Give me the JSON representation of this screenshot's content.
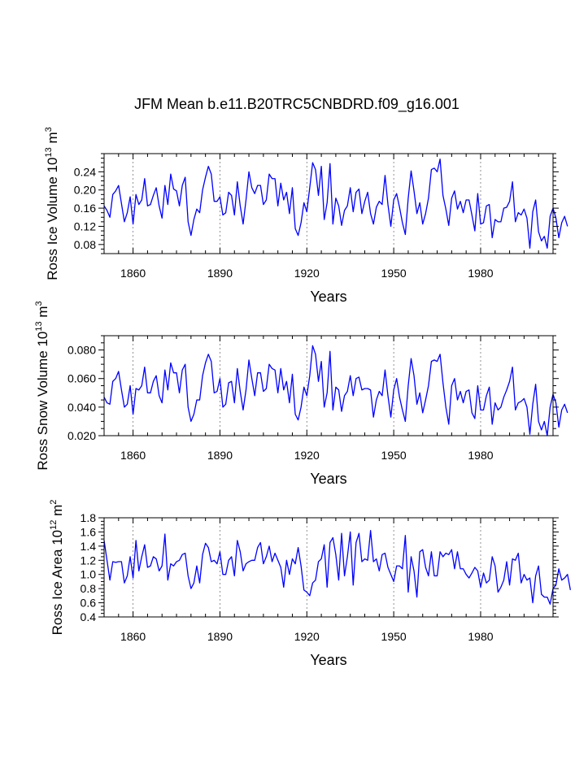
{
  "chart_data": [
    {
      "type": "line",
      "title": "JFM Mean b.e11.B20TRC5CNBDRD.f09_g16.001",
      "ylabel": {
        "base": "Ross Ice Volume 10",
        "exp": "13",
        "unit_base": "m",
        "unit_exp": "3"
      },
      "xlabel": "Years",
      "xlim": [
        1850,
        2005
      ],
      "ylim": [
        0.06,
        0.28
      ],
      "xticks": [
        1860,
        1890,
        1920,
        1950,
        1980
      ],
      "xtick_labels": [
        "1860",
        "1890",
        "1920",
        "1950",
        "1980"
      ],
      "yticks": [
        0.08,
        0.12,
        0.16,
        0.2,
        0.24
      ],
      "ytick_labels": [
        "0.08",
        "0.12",
        "0.16",
        "0.20",
        "0.24"
      ],
      "series": [
        {
          "name": "Ross Ice Volume",
          "color": "#0000ff",
          "x_start": 1850,
          "values": [
            0.165,
            0.155,
            0.14,
            0.19,
            0.198,
            0.21,
            0.17,
            0.13,
            0.15,
            0.185,
            0.125,
            0.19,
            0.168,
            0.178,
            0.225,
            0.165,
            0.168,
            0.188,
            0.205,
            0.165,
            0.138,
            0.21,
            0.168,
            0.235,
            0.202,
            0.198,
            0.165,
            0.21,
            0.228,
            0.13,
            0.1,
            0.135,
            0.158,
            0.15,
            0.2,
            0.228,
            0.252,
            0.235,
            0.175,
            0.175,
            0.185,
            0.145,
            0.15,
            0.195,
            0.188,
            0.145,
            0.218,
            0.165,
            0.125,
            0.178,
            0.24,
            0.205,
            0.192,
            0.21,
            0.21,
            0.168,
            0.178,
            0.235,
            0.225,
            0.225,
            0.165,
            0.215,
            0.178,
            0.195,
            0.148,
            0.205,
            0.115,
            0.1,
            0.128,
            0.172,
            0.152,
            0.205,
            0.26,
            0.245,
            0.188,
            0.252,
            0.135,
            0.172,
            0.258,
            0.125,
            0.182,
            0.165,
            0.122,
            0.155,
            0.165,
            0.205,
            0.152,
            0.195,
            0.202,
            0.148,
            0.175,
            0.195,
            0.148,
            0.125,
            0.162,
            0.175,
            0.168,
            0.232,
            0.168,
            0.12,
            0.178,
            0.192,
            0.162,
            0.128,
            0.102,
            0.182,
            0.242,
            0.198,
            0.148,
            0.172,
            0.125,
            0.148,
            0.182,
            0.245,
            0.248,
            0.24,
            0.268,
            0.188,
            0.158,
            0.122,
            0.182,
            0.198,
            0.158,
            0.175,
            0.15,
            0.178,
            0.178,
            0.145,
            0.11,
            0.192,
            0.125,
            0.128,
            0.165,
            0.168,
            0.095,
            0.135,
            0.13,
            0.13,
            0.16,
            0.162,
            0.175,
            0.218,
            0.13,
            0.15,
            0.145,
            0.158,
            0.138,
            0.072,
            0.152,
            0.178,
            0.108,
            0.088,
            0.098,
            0.072,
            0.142,
            0.16,
            0.138,
            0.095,
            0.128,
            0.142,
            0.12
          ]
        }
      ],
      "ref_lines_x": [
        1860,
        1890,
        1920,
        1950,
        1980
      ]
    },
    {
      "type": "line",
      "title": "",
      "ylabel": {
        "base": "Ross Snow Volume 10",
        "exp": "13",
        "unit_base": "m",
        "unit_exp": "3"
      },
      "xlabel": "Years",
      "xlim": [
        1850,
        2005
      ],
      "ylim": [
        0.02,
        0.09
      ],
      "xticks": [
        1860,
        1890,
        1920,
        1950,
        1980
      ],
      "xtick_labels": [
        "1860",
        "1890",
        "1920",
        "1950",
        "1980"
      ],
      "yticks": [
        0.02,
        0.04,
        0.06,
        0.08
      ],
      "ytick_labels": [
        "0.020",
        "0.040",
        "0.060",
        "0.080"
      ],
      "series": [
        {
          "name": "Ross Snow Volume",
          "color": "#0000ff",
          "x_start": 1850,
          "values": [
            0.047,
            0.043,
            0.042,
            0.058,
            0.06,
            0.065,
            0.052,
            0.04,
            0.042,
            0.055,
            0.035,
            0.053,
            0.052,
            0.055,
            0.068,
            0.05,
            0.05,
            0.058,
            0.062,
            0.048,
            0.043,
            0.066,
            0.052,
            0.071,
            0.064,
            0.064,
            0.05,
            0.066,
            0.07,
            0.04,
            0.03,
            0.035,
            0.045,
            0.045,
            0.062,
            0.071,
            0.077,
            0.072,
            0.05,
            0.051,
            0.06,
            0.04,
            0.042,
            0.057,
            0.058,
            0.043,
            0.067,
            0.051,
            0.038,
            0.052,
            0.073,
            0.06,
            0.048,
            0.064,
            0.064,
            0.051,
            0.053,
            0.07,
            0.067,
            0.066,
            0.05,
            0.067,
            0.052,
            0.058,
            0.043,
            0.063,
            0.035,
            0.031,
            0.04,
            0.054,
            0.048,
            0.062,
            0.083,
            0.077,
            0.058,
            0.072,
            0.04,
            0.05,
            0.079,
            0.038,
            0.054,
            0.052,
            0.037,
            0.048,
            0.051,
            0.062,
            0.048,
            0.06,
            0.061,
            0.052,
            0.053,
            0.053,
            0.052,
            0.033,
            0.045,
            0.051,
            0.048,
            0.066,
            0.048,
            0.033,
            0.052,
            0.06,
            0.047,
            0.038,
            0.03,
            0.055,
            0.074,
            0.062,
            0.042,
            0.05,
            0.036,
            0.045,
            0.055,
            0.072,
            0.073,
            0.072,
            0.077,
            0.057,
            0.04,
            0.028,
            0.055,
            0.06,
            0.045,
            0.051,
            0.043,
            0.051,
            0.052,
            0.036,
            0.032,
            0.055,
            0.038,
            0.038,
            0.048,
            0.054,
            0.028,
            0.043,
            0.038,
            0.04,
            0.047,
            0.052,
            0.058,
            0.068,
            0.038,
            0.043,
            0.044,
            0.046,
            0.04,
            0.021,
            0.042,
            0.056,
            0.03,
            0.024,
            0.03,
            0.02,
            0.04,
            0.049,
            0.043,
            0.026,
            0.038,
            0.042,
            0.036
          ]
        }
      ],
      "ref_lines_x": [
        1860,
        1890,
        1920,
        1950,
        1980
      ]
    },
    {
      "type": "line",
      "title": "",
      "ylabel": {
        "base": "Ross Ice Area 10",
        "exp": "12",
        "unit_base": "m",
        "unit_exp": "2"
      },
      "xlabel": "Years",
      "xlim": [
        1850,
        2005
      ],
      "ylim": [
        0.4,
        1.8
      ],
      "xticks": [
        1860,
        1890,
        1920,
        1950,
        1980
      ],
      "xtick_labels": [
        "1860",
        "1890",
        "1920",
        "1950",
        "1980"
      ],
      "yticks": [
        0.4,
        0.6,
        0.8,
        1.0,
        1.2,
        1.4,
        1.6,
        1.8
      ],
      "ytick_labels": [
        "0.4",
        "0.6",
        "0.8",
        "1.0",
        "1.2",
        "1.4",
        "1.6",
        "1.8"
      ],
      "series": [
        {
          "name": "Ross Ice Area",
          "color": "#0000ff",
          "x_start": 1850,
          "values": [
            1.48,
            1.2,
            0.92,
            1.18,
            1.17,
            1.18,
            1.18,
            0.88,
            0.98,
            1.25,
            0.95,
            1.48,
            1.05,
            1.25,
            1.42,
            1.1,
            1.12,
            1.25,
            1.22,
            1.05,
            1.12,
            1.57,
            0.92,
            1.15,
            1.12,
            1.18,
            1.2,
            1.28,
            1.3,
            0.98,
            0.8,
            0.88,
            1.12,
            0.88,
            1.28,
            1.44,
            1.38,
            1.18,
            1.2,
            1.15,
            1.32,
            1.0,
            1.0,
            1.2,
            1.25,
            0.98,
            1.48,
            1.32,
            1.05,
            1.15,
            1.18,
            1.2,
            1.2,
            1.38,
            1.45,
            1.15,
            1.25,
            1.4,
            1.18,
            1.3,
            1.2,
            1.1,
            0.82,
            1.2,
            1.0,
            1.22,
            1.15,
            1.38,
            1.12,
            0.78,
            0.75,
            0.7,
            0.88,
            0.92,
            1.18,
            1.22,
            1.42,
            0.82,
            1.45,
            1.52,
            1.28,
            0.92,
            1.58,
            0.98,
            1.25,
            1.6,
            0.85,
            1.45,
            1.58,
            1.18,
            1.22,
            1.2,
            1.62,
            1.18,
            1.22,
            1.05,
            1.28,
            1.3,
            1.1,
            1.0,
            0.9,
            1.12,
            1.12,
            1.08,
            1.55,
            0.75,
            1.25,
            1.05,
            0.68,
            1.32,
            1.35,
            1.1,
            0.98,
            1.32,
            0.98,
            0.98,
            1.32,
            1.25,
            1.3,
            1.28,
            1.35,
            1.08,
            1.32,
            1.08,
            1.08,
            1.0,
            0.95,
            1.02,
            1.1,
            1.05,
            0.82,
            1.02,
            0.88,
            0.92,
            1.25,
            1.12,
            0.75,
            0.82,
            0.92,
            1.18,
            0.85,
            1.22,
            1.2,
            1.3,
            0.88,
            1.0,
            0.92,
            0.95,
            0.6,
            0.98,
            1.12,
            0.72,
            0.68,
            0.68,
            0.58,
            0.8,
            0.85,
            1.08,
            0.92,
            0.95,
            1.0,
            0.78
          ]
        }
      ],
      "ref_lines_x": [
        1860,
        1890,
        1920,
        1950,
        1980
      ]
    }
  ]
}
